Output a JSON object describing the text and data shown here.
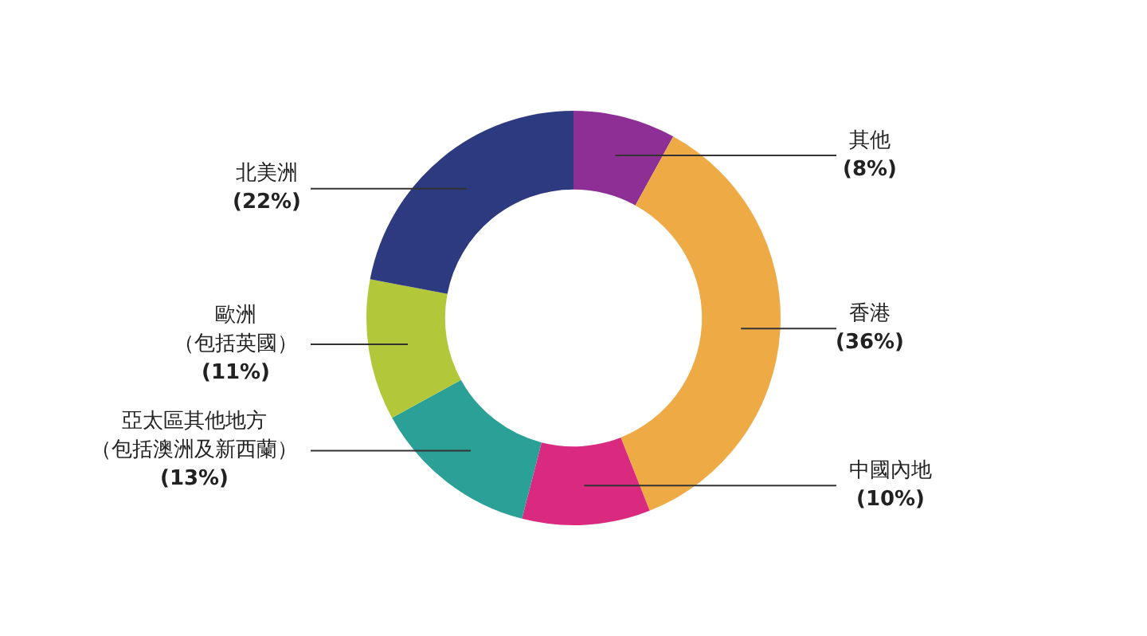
{
  "chart_data": {
    "type": "donut",
    "categories": [
      "其他",
      "香港",
      "中國內地",
      "亞太區其他地方（包括澳洲及新西蘭）",
      "歐洲（包括英國）",
      "北美洲"
    ],
    "values": [
      8,
      36,
      10,
      13,
      11,
      22
    ],
    "colors": [
      "#8e2f95",
      "#eeaa45",
      "#d92a7f",
      "#2aa096",
      "#b2c73a",
      "#2e3a80"
    ],
    "value_labels": [
      "(8%)",
      "(36%)",
      "(10%)",
      "(13%)",
      "(11%)",
      "(22%)"
    ],
    "legend": false
  }
}
